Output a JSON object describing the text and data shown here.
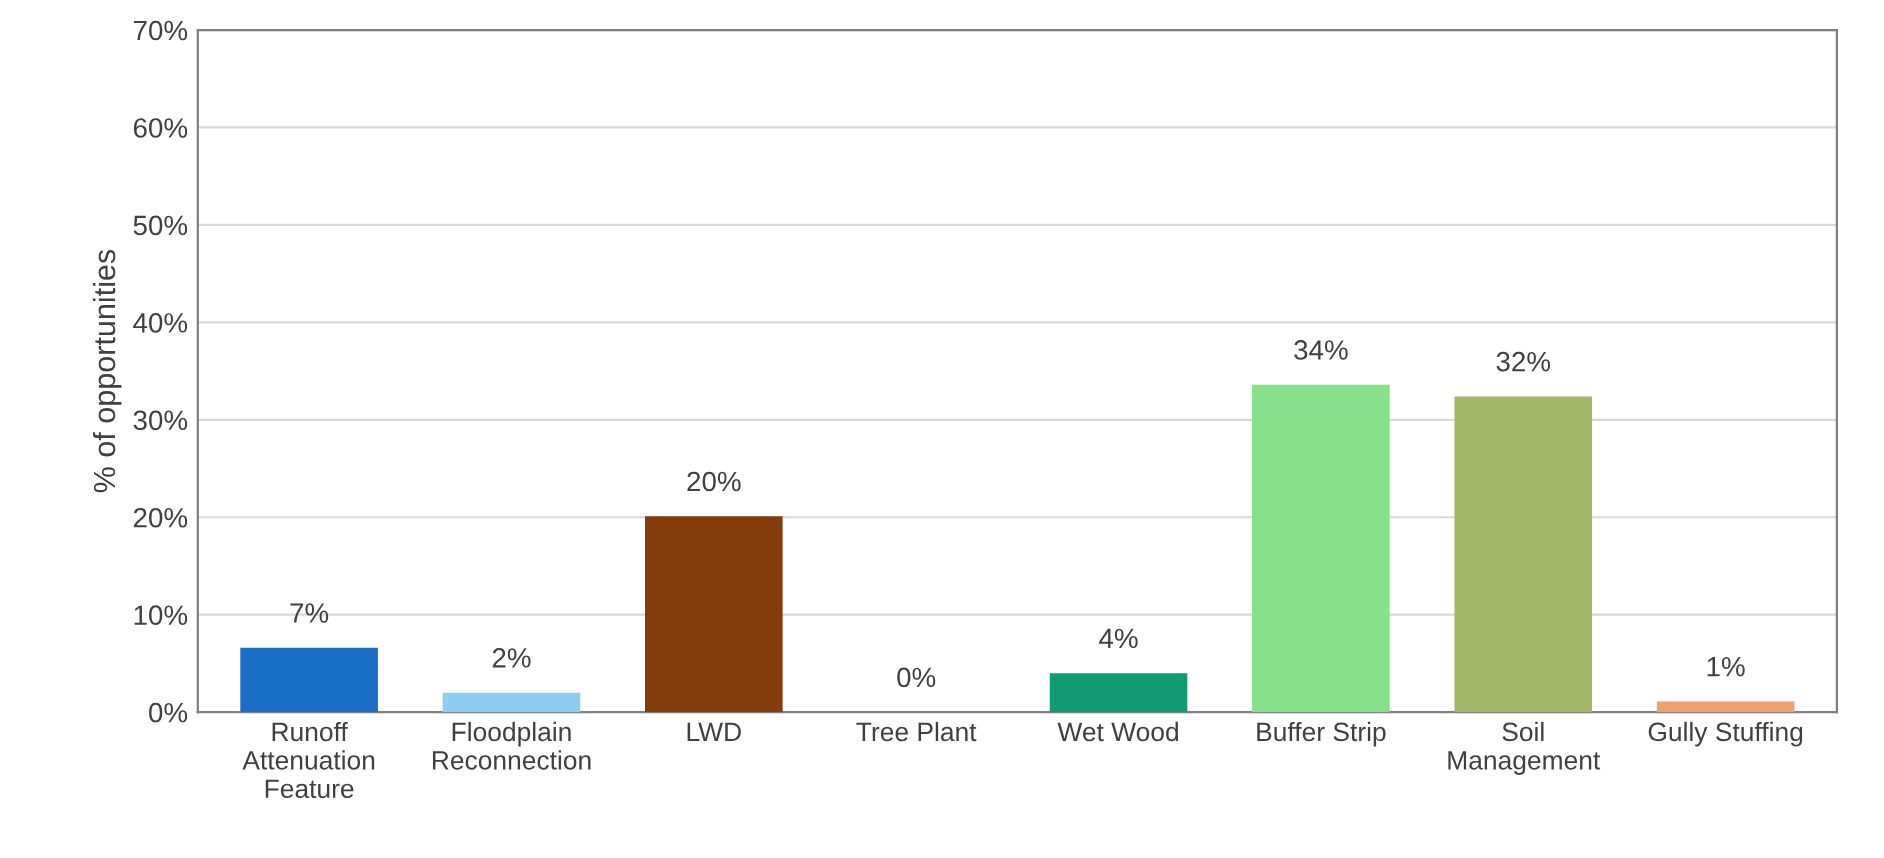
{
  "chart_data": {
    "type": "bar",
    "ylabel": "% of opportunities",
    "categories": [
      "Runoff\nAttenuation\nFeature",
      "Floodplain\nReconnection",
      "LWD",
      "Tree Plant",
      "Wet Wood",
      "Buffer Strip",
      "Soil\nManagement",
      "Gully Stuffing"
    ],
    "values": [
      6.6,
      2.0,
      20.1,
      0,
      4.0,
      33.6,
      32.4,
      1.1
    ],
    "colors": [
      "#1a6fc4",
      "#8ccdf0",
      "#843c0c",
      "#6aa84f",
      "#129b72",
      "#86e08c",
      "#a5b86a",
      "#f0a070"
    ],
    "value_labels": [
      "7%",
      "2%",
      "20%",
      "0%",
      "4%",
      "34%",
      "32%",
      "1%"
    ],
    "ylim": [
      0,
      70
    ],
    "yticks": [
      {
        "value": 0,
        "label": "0%"
      },
      {
        "value": 10,
        "label": "10%"
      },
      {
        "value": 20,
        "label": "20%"
      },
      {
        "value": 30,
        "label": "30%"
      },
      {
        "value": 40,
        "label": "40%"
      },
      {
        "value": 50,
        "label": "50%"
      },
      {
        "value": 60,
        "label": "60%"
      },
      {
        "value": 70,
        "label": "70%"
      }
    ],
    "grid": "y"
  }
}
